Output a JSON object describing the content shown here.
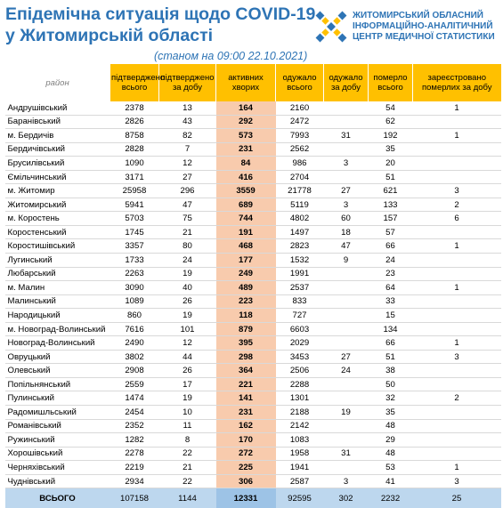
{
  "header": {
    "title_line1": "Епідемічна ситуація щодо COVID-19",
    "title_line2": "у Житомирській області",
    "subtitle": "(станом на 09:00 22.10.2021)",
    "logo_line1": "ЖИТОМИРСЬКИЙ ОБЛАСНИЙ",
    "logo_line2": "ІНФОРМАЦІЙНО-АНАЛІТИЧНИЙ",
    "logo_line3": "ЦЕНТР МЕДИЧНОЇ СТАТИСТИКИ"
  },
  "table": {
    "columns": [
      "район",
      "підтверджено всього",
      "підтверджено за добу",
      "активних хворих",
      "одужало всього",
      "одужало за добу",
      "померло всього",
      "зареєстровано померлих за добу"
    ],
    "rows": [
      [
        "Андрушівський",
        "2378",
        "13",
        "164",
        "2160",
        "",
        "54",
        "1"
      ],
      [
        "Баранівський",
        "2826",
        "43",
        "292",
        "2472",
        "",
        "62",
        ""
      ],
      [
        "м. Бердичів",
        "8758",
        "82",
        "573",
        "7993",
        "31",
        "192",
        "1"
      ],
      [
        "Бердичівський",
        "2828",
        "7",
        "231",
        "2562",
        "",
        "35",
        ""
      ],
      [
        "Брусилівський",
        "1090",
        "12",
        "84",
        "986",
        "3",
        "20",
        ""
      ],
      [
        "Ємільчинський",
        "3171",
        "27",
        "416",
        "2704",
        "",
        "51",
        ""
      ],
      [
        "м. Житомир",
        "25958",
        "296",
        "3559",
        "21778",
        "27",
        "621",
        "3"
      ],
      [
        "Житомирський",
        "5941",
        "47",
        "689",
        "5119",
        "3",
        "133",
        "2"
      ],
      [
        "м. Коростень",
        "5703",
        "75",
        "744",
        "4802",
        "60",
        "157",
        "6"
      ],
      [
        "Коростенський",
        "1745",
        "21",
        "191",
        "1497",
        "18",
        "57",
        ""
      ],
      [
        "Коростишівський",
        "3357",
        "80",
        "468",
        "2823",
        "47",
        "66",
        "1"
      ],
      [
        "Лугинський",
        "1733",
        "24",
        "177",
        "1532",
        "9",
        "24",
        ""
      ],
      [
        "Любарський",
        "2263",
        "19",
        "249",
        "1991",
        "",
        "23",
        ""
      ],
      [
        "м. Малин",
        "3090",
        "40",
        "489",
        "2537",
        "",
        "64",
        "1"
      ],
      [
        "Малинський",
        "1089",
        "26",
        "223",
        "833",
        "",
        "33",
        ""
      ],
      [
        "Народицький",
        "860",
        "19",
        "118",
        "727",
        "",
        "15",
        ""
      ],
      [
        "м. Новоград-Волинський",
        "7616",
        "101",
        "879",
        "6603",
        "",
        "134",
        ""
      ],
      [
        "Новоград-Волинський",
        "2490",
        "12",
        "395",
        "2029",
        "",
        "66",
        "1"
      ],
      [
        "Овруцький",
        "3802",
        "44",
        "298",
        "3453",
        "27",
        "51",
        "3"
      ],
      [
        "Олевський",
        "2908",
        "26",
        "364",
        "2506",
        "24",
        "38",
        ""
      ],
      [
        "Попільнянський",
        "2559",
        "17",
        "221",
        "2288",
        "",
        "50",
        ""
      ],
      [
        "Пулинський",
        "1474",
        "19",
        "141",
        "1301",
        "",
        "32",
        "2"
      ],
      [
        "Радомишльський",
        "2454",
        "10",
        "231",
        "2188",
        "19",
        "35",
        ""
      ],
      [
        "Романівський",
        "2352",
        "11",
        "162",
        "2142",
        "",
        "48",
        ""
      ],
      [
        "Ружинський",
        "1282",
        "8",
        "170",
        "1083",
        "",
        "29",
        ""
      ],
      [
        "Хорошівський",
        "2278",
        "22",
        "272",
        "1958",
        "31",
        "48",
        ""
      ],
      [
        "Черняхівський",
        "2219",
        "21",
        "225",
        "1941",
        "",
        "53",
        "1"
      ],
      [
        "Чуднівський",
        "2934",
        "22",
        "306",
        "2587",
        "3",
        "41",
        "3"
      ]
    ],
    "total": [
      "ВСЬОГО",
      "107158",
      "1144",
      "12331",
      "92595",
      "302",
      "2232",
      "25"
    ]
  }
}
